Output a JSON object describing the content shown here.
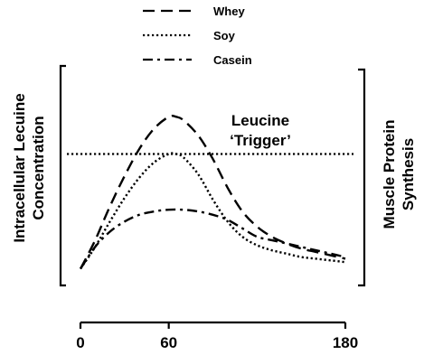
{
  "chart_data": {
    "type": "line",
    "title": "",
    "xlabel": "",
    "ylabel": "Intracellular Lecuine Concentration",
    "y2label": "Muscle Protein Synthesis",
    "xlim": [
      0,
      180
    ],
    "ylim": [
      0,
      1
    ],
    "x_ticks": [
      0,
      60,
      180
    ],
    "y_ticks": [],
    "grid": false,
    "legend_position": "top",
    "series": [
      {
        "name": "Whey",
        "style": "dashed",
        "color": "#000000",
        "x": [
          0,
          10,
          20,
          30,
          40,
          50,
          60,
          65,
          70,
          80,
          90,
          100,
          110,
          120,
          130,
          140,
          150,
          160,
          170,
          180
        ],
        "y": [
          0.05,
          0.22,
          0.42,
          0.6,
          0.76,
          0.88,
          0.95,
          0.95,
          0.93,
          0.84,
          0.7,
          0.53,
          0.39,
          0.3,
          0.24,
          0.2,
          0.17,
          0.15,
          0.13,
          0.11
        ]
      },
      {
        "name": "Soy",
        "style": "dotted",
        "color": "#000000",
        "x": [
          0,
          10,
          20,
          30,
          40,
          50,
          60,
          65,
          70,
          80,
          90,
          100,
          110,
          120,
          130,
          140,
          150,
          160,
          170,
          180
        ],
        "y": [
          0.05,
          0.18,
          0.33,
          0.47,
          0.59,
          0.68,
          0.73,
          0.73,
          0.71,
          0.61,
          0.46,
          0.33,
          0.24,
          0.19,
          0.16,
          0.14,
          0.12,
          0.11,
          0.1,
          0.09
        ]
      },
      {
        "name": "Casein",
        "style": "dashdot",
        "color": "#000000",
        "x": [
          0,
          10,
          20,
          30,
          40,
          50,
          60,
          70,
          80,
          90,
          100,
          110,
          120,
          130,
          140,
          150,
          160,
          170,
          180
        ],
        "y": [
          0.05,
          0.18,
          0.27,
          0.33,
          0.37,
          0.39,
          0.4,
          0.4,
          0.39,
          0.37,
          0.34,
          0.29,
          0.24,
          0.22,
          0.2,
          0.18,
          0.16,
          0.14,
          0.12
        ]
      }
    ],
    "reference_lines": [
      {
        "label": "Leucine\n‘Trigger’",
        "label_lines": [
          "Leucine",
          "‘Trigger’"
        ],
        "y": 0.73,
        "style": "dotted"
      }
    ]
  }
}
